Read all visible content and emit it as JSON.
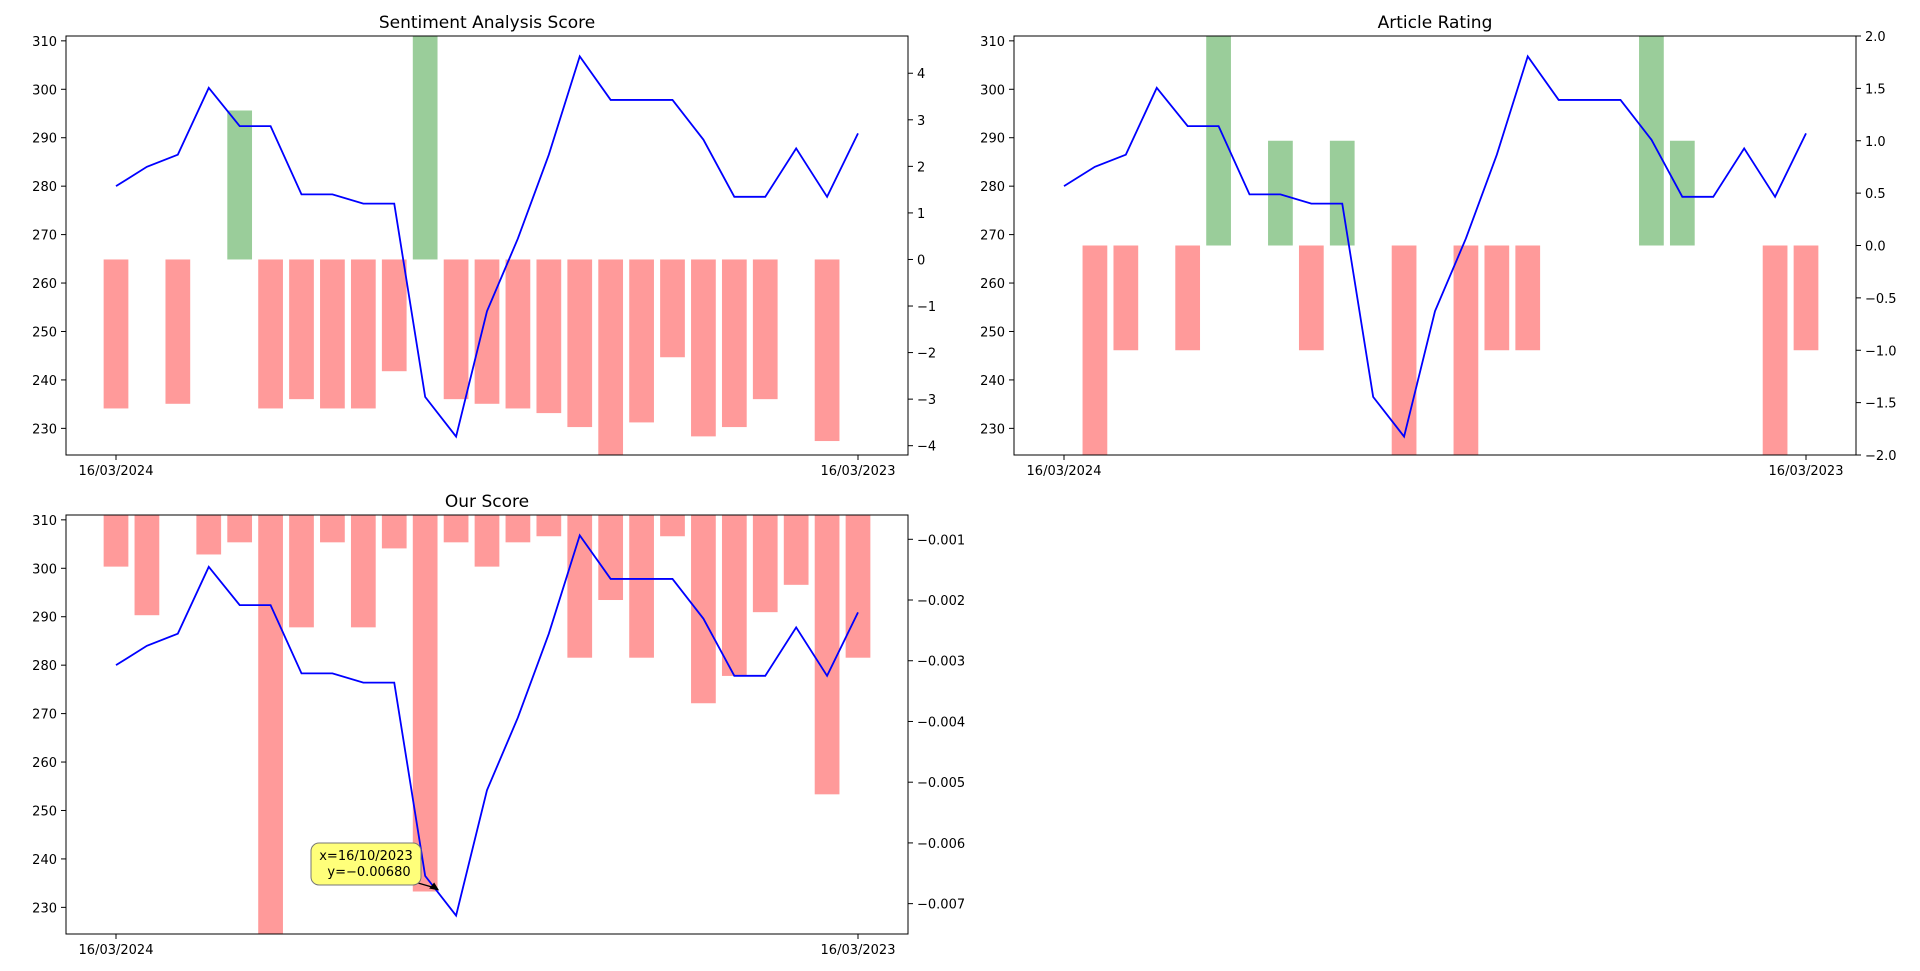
{
  "page": {
    "background": "#ffffff"
  },
  "price_axis": {
    "ylim": [
      224.5,
      311
    ],
    "ticks": [
      230,
      240,
      250,
      260,
      270,
      280,
      290,
      300,
      310
    ]
  },
  "x_axis": {
    "ticks": [
      {
        "index": 0,
        "label": "16/03/2024"
      },
      {
        "index": 24,
        "label": "16/03/2023"
      }
    ]
  },
  "colors": {
    "line": "#0000ff",
    "positive_bar": "#9acd9a",
    "negative_bar": "#ff9a9a",
    "annotation_fill": "#ffff7a"
  },
  "chart_data": [
    {
      "type": "bar",
      "title": "Sentiment Analysis Score",
      "price_series": [
        280,
        284,
        286.5,
        300.3,
        292.4,
        292.4,
        278.3,
        278.3,
        276.4,
        276.4,
        236.5,
        228.3,
        254.2,
        269.2,
        286.5,
        306.8,
        297.8,
        297.8,
        297.8,
        289.6,
        277.8,
        277.8,
        287.8,
        277.8,
        290.9
      ],
      "bar_values": [
        -3.2,
        null,
        -3.1,
        null,
        3.2,
        -3.2,
        -3.0,
        -3.2,
        -3.2,
        -2.4,
        4.8,
        -3.0,
        -3.1,
        -3.2,
        -3.3,
        -3.6,
        -4.2,
        -3.5,
        -2.1,
        -3.8,
        -3.6,
        -3.0,
        null,
        -3.9,
        null
      ],
      "y2lim": [
        -4.2,
        4.8
      ],
      "y2ticks": [
        -4,
        -3,
        -2,
        -1,
        0,
        1,
        2,
        3,
        4
      ]
    },
    {
      "type": "bar",
      "title": "Article Rating",
      "price_series": [
        280,
        284,
        286.5,
        300.3,
        292.4,
        292.4,
        278.3,
        278.3,
        276.4,
        276.4,
        236.5,
        228.3,
        254.2,
        269.2,
        286.5,
        306.8,
        297.8,
        297.8,
        297.8,
        289.6,
        277.8,
        277.8,
        287.8,
        277.8,
        290.9
      ],
      "bar_values": [
        null,
        -2,
        -1,
        null,
        -1,
        2,
        null,
        1,
        -1,
        1,
        null,
        -2,
        null,
        -2,
        -1,
        -1,
        null,
        null,
        null,
        2,
        1,
        null,
        null,
        -2,
        -1
      ],
      "y2lim": [
        -2,
        2
      ],
      "y2ticks": [
        -2.0,
        -1.5,
        -1.0,
        -0.5,
        0.0,
        0.5,
        1.0,
        1.5,
        2.0
      ]
    },
    {
      "type": "bar",
      "title": "Our Score",
      "price_series": [
        280,
        284,
        286.5,
        300.3,
        292.4,
        292.4,
        278.3,
        278.3,
        276.4,
        276.4,
        236.5,
        228.3,
        254.2,
        269.2,
        286.5,
        306.8,
        297.8,
        297.8,
        297.8,
        289.6,
        277.8,
        277.8,
        287.8,
        277.8,
        290.9
      ],
      "bar_values": [
        -0.00145,
        -0.00225,
        null,
        -0.00125,
        -0.00105,
        -0.0075,
        -0.00245,
        -0.00105,
        -0.00245,
        -0.00115,
        -0.0068,
        -0.00105,
        -0.00145,
        -0.00105,
        -0.00095,
        -0.00295,
        -0.002,
        -0.00295,
        -0.00095,
        -0.0037,
        -0.00325,
        -0.0022,
        -0.00175,
        -0.0052,
        -0.00295
      ],
      "y2lim": [
        -0.0075,
        -0.0006
      ],
      "y2ticks": [
        -0.007,
        -0.006,
        -0.005,
        -0.004,
        -0.003,
        -0.002,
        -0.001
      ],
      "annotation": {
        "index": 10,
        "line1": "x=16/10/2023",
        "line2": "y=−0.00680"
      }
    }
  ]
}
